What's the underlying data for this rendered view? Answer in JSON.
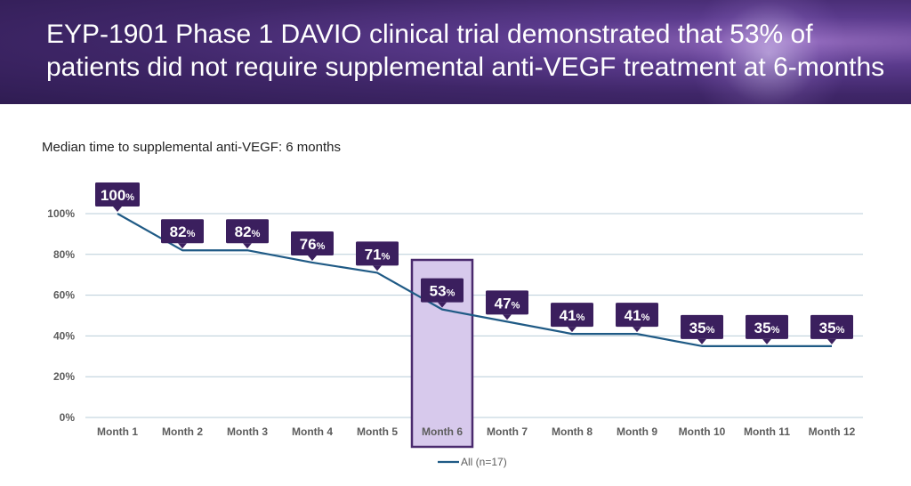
{
  "header": {
    "title": "EYP-1901 Phase 1 DAVIO clinical trial demonstrated that 53% of patients did not require supplemental anti-VEGF treatment at 6-months"
  },
  "subtitle": "Median time to supplemental anti-VEGF: 6 months",
  "colors": {
    "header_bg": "#3f2668",
    "line": "#1f5a85",
    "label_bg": "#3b1f5e",
    "highlight_fill": "#d7c9ec",
    "highlight_stroke": "#4a2a6e",
    "grid": "#b8cdd8"
  },
  "chart_data": {
    "type": "line",
    "categories": [
      "Month 1",
      "Month 2",
      "Month 3",
      "Month 4",
      "Month 5",
      "Month 6",
      "Month 7",
      "Month 8",
      "Month 9",
      "Month 10",
      "Month 11",
      "Month 12"
    ],
    "series": [
      {
        "name": "All (n=17)",
        "values": [
          100,
          82,
          82,
          76,
          71,
          53,
          47,
          41,
          41,
          35,
          35,
          35
        ]
      }
    ],
    "data_labels": [
      "100",
      "82",
      "82",
      "76",
      "71",
      "53",
      "47",
      "41",
      "41",
      "35",
      "35",
      "35"
    ],
    "data_label_unit": "%",
    "y_ticks": [
      "0%",
      "20%",
      "40%",
      "60%",
      "80%",
      "100%"
    ],
    "ylim": [
      0,
      100
    ],
    "highlight_category": "Month 6",
    "legend": "bottom",
    "grid": true
  }
}
